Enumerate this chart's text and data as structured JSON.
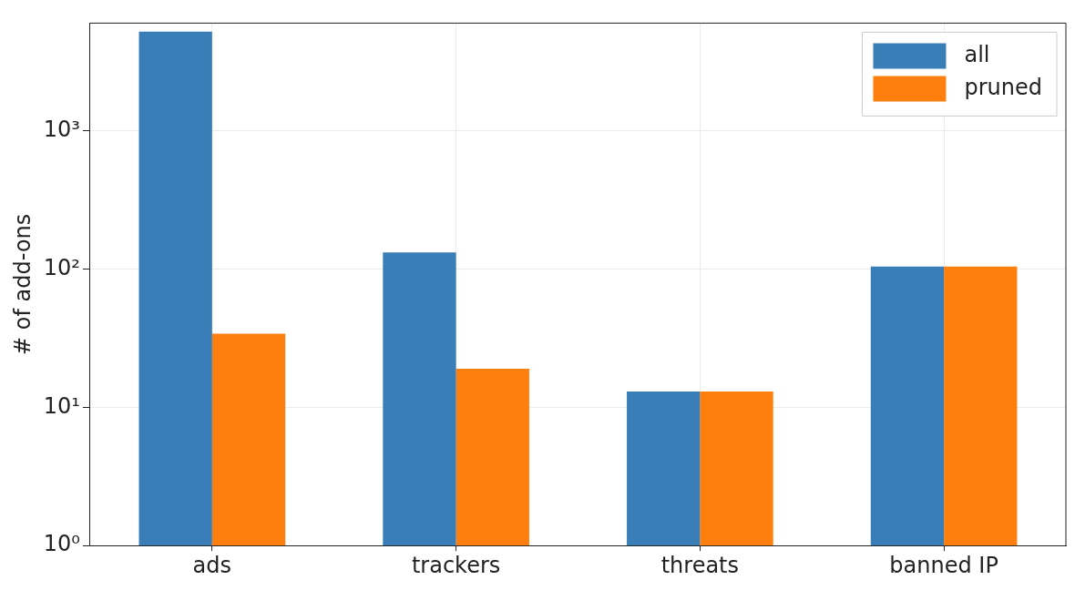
{
  "chart_data": {
    "type": "bar",
    "ylabel": "# of add-ons",
    "categories": [
      "ads",
      "trackers",
      "threats",
      "banned IP"
    ],
    "series": [
      {
        "name": "all",
        "color": "#3a7eb8",
        "values": [
          5200,
          132,
          13,
          104
        ]
      },
      {
        "name": "pruned",
        "color": "#ff7f0e",
        "values": [
          34,
          19,
          13,
          104
        ]
      }
    ],
    "log": "y",
    "ylim": [
      1,
      6000
    ],
    "yticks": [
      {
        "value": 1,
        "label": "10⁰"
      },
      {
        "value": 10,
        "label": "10¹"
      },
      {
        "value": 100,
        "label": "10²"
      },
      {
        "value": 1000,
        "label": "10³"
      }
    ],
    "grid": true,
    "legend": "top right"
  }
}
